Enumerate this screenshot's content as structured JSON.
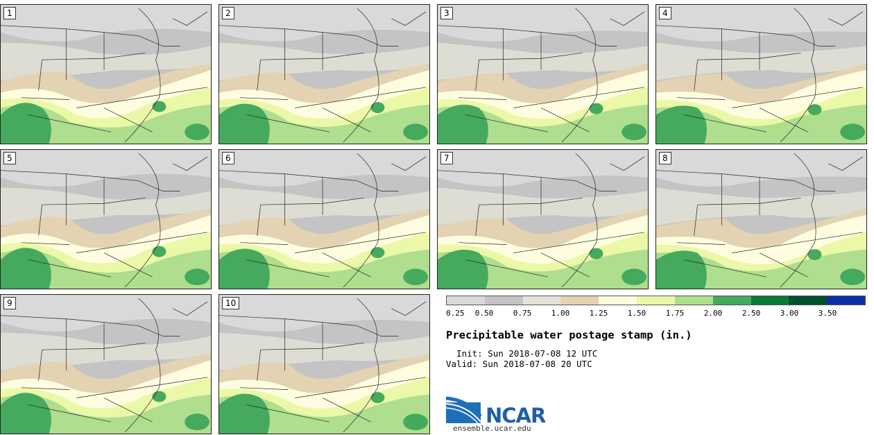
{
  "panels": [
    {
      "label": "1"
    },
    {
      "label": "2"
    },
    {
      "label": "3"
    },
    {
      "label": "4"
    },
    {
      "label": "5"
    },
    {
      "label": "6"
    },
    {
      "label": "7"
    },
    {
      "label": "8"
    },
    {
      "label": "9"
    },
    {
      "label": "10"
    }
  ],
  "legend": {
    "colors": [
      "#d9d9d9",
      "#c4c4c4",
      "#e3e3d8",
      "#e3d3b3",
      "#fffde0",
      "#ebf8a8",
      "#aede8e",
      "#45a95e",
      "#0e7a38",
      "#00502b",
      "#0b2fa8"
    ],
    "ticks": [
      "0.25",
      "0.50",
      "0.75",
      "1.00",
      "1.25",
      "1.50",
      "1.75",
      "2.00",
      "2.50",
      "3.00",
      "3.50"
    ]
  },
  "title": "Precipitable water postage stamp (in.)",
  "init_line": "  Init: Sun 2018-07-08 12 UTC",
  "valid_line": "Valid: Sun 2018-07-08 20 UTC",
  "logo": {
    "name": "NCAR",
    "url": "ensemble.ucar.edu"
  }
}
